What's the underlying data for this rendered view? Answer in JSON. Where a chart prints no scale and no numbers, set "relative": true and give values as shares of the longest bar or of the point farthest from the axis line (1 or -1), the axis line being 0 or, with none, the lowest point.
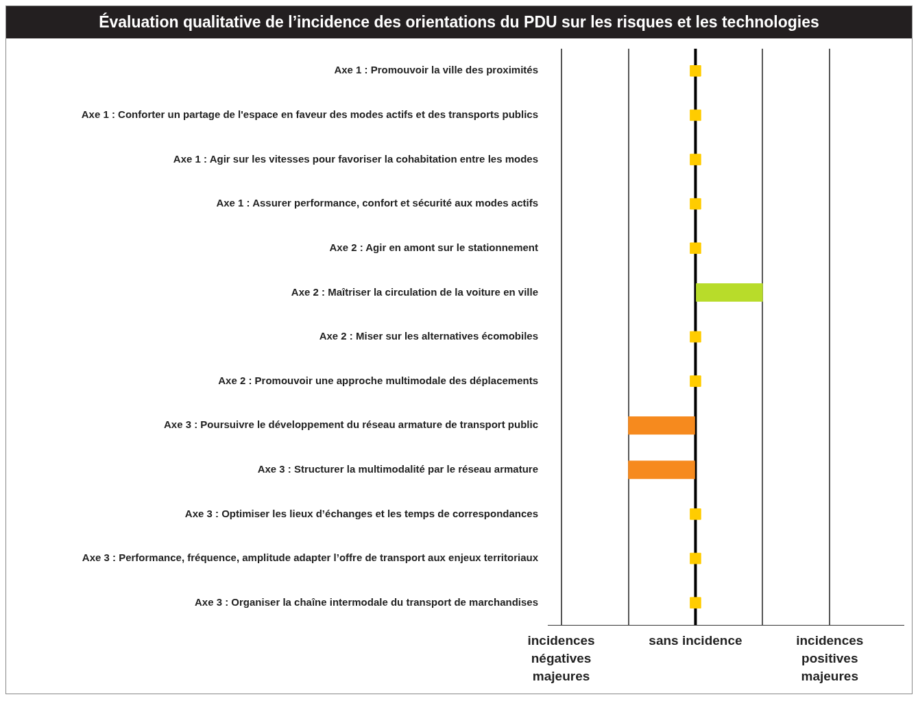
{
  "chart_data": {
    "type": "bar",
    "orientation": "horizontal",
    "title": "Évaluation qualitative de l’incidence des orientations du PDU sur les risques et les technologies",
    "categories": [
      "Axe 1 : Promouvoir la ville des proximités",
      "Axe 1 : Conforter un partage de l'espace en faveur des modes actifs et des transports publics",
      "Axe 1 : Agir sur les vitesses pour favoriser la cohabitation entre les modes",
      "Axe 1 : Assurer performance, confort et sécurité aux modes actifs",
      "Axe 2 : Agir en amont sur le stationnement",
      "Axe 2 : Maîtriser la circulation de la voiture en ville",
      "Axe 2 : Miser sur les alternatives écomobiles",
      "Axe 2 : Promouvoir une approche multimodale des déplacements",
      "Axe 3 : Poursuivre le développement du réseau armature de transport public",
      "Axe 3 : Structurer la multimodalité par le réseau armature",
      "Axe 3 : Optimiser les lieux d’échanges et les temps de correspondances",
      "Axe 3 : Performance, fréquence, amplitude adapter l’offre de transport aux enjeux territoriaux",
      "Axe 3 : Organiser la chaîne intermodale du transport de marchandises"
    ],
    "series": [
      {
        "colors": [
          null,
          null,
          null,
          null,
          null,
          "#b8dc2a",
          null,
          null,
          "#f68a1e",
          "#f68a1e",
          null,
          null,
          null
        ],
        "values": [
          null,
          null,
          null,
          null,
          null,
          1,
          null,
          null,
          -1,
          -1,
          null,
          null,
          null
        ]
      },
      {
        "type": "scatter",
        "color": "#ffcc00",
        "marker": "square",
        "values": [
          0,
          0,
          0,
          0,
          0,
          null,
          0,
          0,
          null,
          null,
          0,
          0,
          0
        ]
      }
    ],
    "relative": true,
    "annotations": [
      "incidences négatives majeures",
      "sans incidence",
      "incidences positives majeures"
    ],
    "ref_lines": [
      {
        "axis": "x",
        "value": 0,
        "color": "#000000"
      }
    ],
    "grid": "x",
    "legend": false
  }
}
